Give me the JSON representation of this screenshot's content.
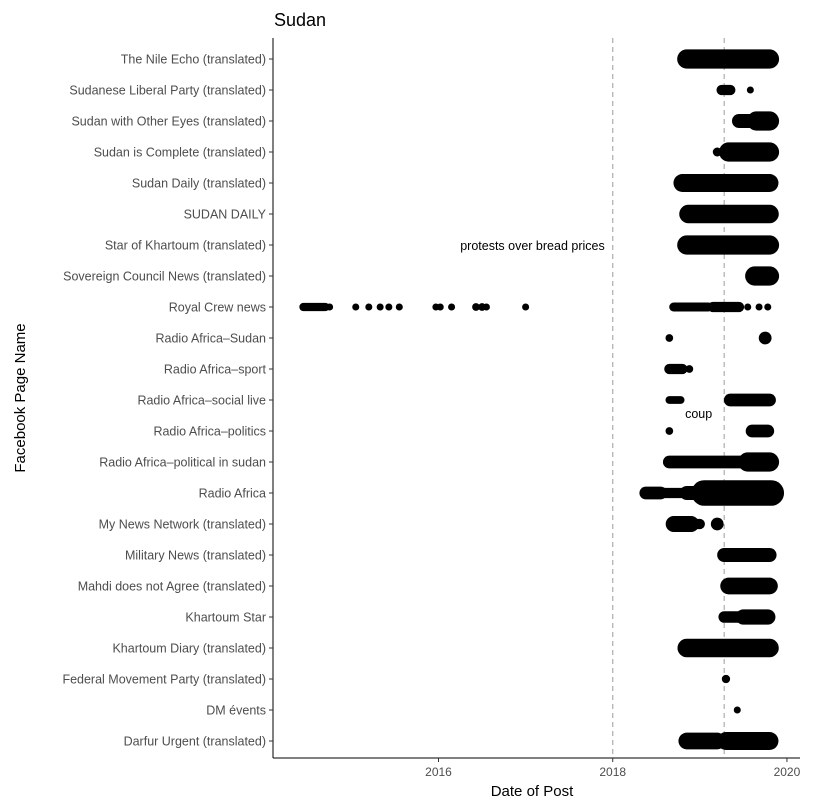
{
  "chart_data": {
    "type": "scatter",
    "title": "Sudan",
    "xlabel": "Date of Post",
    "ylabel": "Facebook Page Name",
    "xlim": [
      2014.1,
      2020.15
    ],
    "x_ticks": [
      2016,
      2018,
      2020
    ],
    "grid": false,
    "categories": [
      "The Nile Echo (translated)",
      "Sudanese Liberal Party (translated)",
      "Sudan with Other Eyes (translated)",
      "Sudan is Complete (translated)",
      "Sudan Daily (translated)",
      "SUDAN DAILY",
      "Star of Khartoum (translated)",
      "Sovereign Council News (translated)",
      "Royal Crew news",
      "Radio Africa–Sudan",
      "Radio Africa–sport",
      "Radio Africa–social live",
      "Radio Africa–politics",
      "Radio Africa–political in sudan",
      "Radio Africa",
      "My News Network (translated)",
      "Military News (translated)",
      "Mahdi does not Agree (translated)",
      "Khartoum Star",
      "Khartoum Diary (translated)",
      "Federal Movement Party (translated)",
      "DM évents",
      "Darfur Urgent (translated)"
    ],
    "vlines": [
      {
        "x": 2018.0,
        "label": "protests over bread prices",
        "label_y_category": "Star of Khartoum (translated)"
      },
      {
        "x": 2019.28,
        "label": "coup",
        "label_y_category": "Radio Africa–politics"
      }
    ],
    "series": [
      {
        "category": "The Nile Echo (translated)",
        "segments": [
          [
            2018.85,
            2019.8,
            3.0
          ]
        ]
      },
      {
        "category": "Sudanese Liberal Party (translated)",
        "segments": [
          [
            2019.25,
            2019.35,
            1.6
          ]
        ],
        "points": [
          [
            2019.58,
            1.1
          ]
        ]
      },
      {
        "category": "Sudan with Other Eyes (translated)",
        "segments": [
          [
            2019.45,
            2019.6,
            2.2
          ],
          [
            2019.65,
            2019.8,
            3.0
          ]
        ]
      },
      {
        "category": "Sudan is Complete (translated)",
        "segments": [
          [
            2019.33,
            2019.8,
            3.0
          ]
        ],
        "points": [
          [
            2019.2,
            1.4
          ]
        ]
      },
      {
        "category": "Sudan Daily (translated)",
        "segments": [
          [
            2018.8,
            2019.8,
            2.8
          ]
        ]
      },
      {
        "category": "SUDAN DAILY",
        "segments": [
          [
            2018.87,
            2019.8,
            2.9
          ]
        ]
      },
      {
        "category": "Star of Khartoum (translated)",
        "segments": [
          [
            2018.85,
            2019.8,
            3.0
          ]
        ]
      },
      {
        "category": "Sovereign Council News (translated)",
        "segments": [
          [
            2019.63,
            2019.8,
            3.0
          ]
        ]
      },
      {
        "category": "Royal Crew news",
        "segments": [
          [
            2014.45,
            2014.7,
            1.3
          ],
          [
            2018.7,
            2019.1,
            1.4
          ],
          [
            2019.15,
            2019.45,
            1.6
          ]
        ],
        "points": [
          [
            2014.75,
            1.1
          ],
          [
            2015.05,
            1.1
          ],
          [
            2015.2,
            1.1
          ],
          [
            2015.33,
            1.1
          ],
          [
            2015.43,
            1.1
          ],
          [
            2015.55,
            1.1
          ],
          [
            2015.97,
            1.1
          ],
          [
            2016.02,
            1.1
          ],
          [
            2016.15,
            1.1
          ],
          [
            2016.43,
            1.2
          ],
          [
            2016.5,
            1.2
          ],
          [
            2016.55,
            1.1
          ],
          [
            2017.0,
            1.1
          ],
          [
            2019.55,
            1.1
          ],
          [
            2019.68,
            1.1
          ],
          [
            2019.78,
            1.1
          ]
        ]
      },
      {
        "category": "Radio Africa–Sudan",
        "points": [
          [
            2018.65,
            1.2
          ],
          [
            2019.75,
            2.0
          ]
        ]
      },
      {
        "category": "Radio Africa–sport",
        "segments": [
          [
            2018.65,
            2018.8,
            1.6
          ]
        ],
        "points": [
          [
            2018.88,
            1.2
          ]
        ]
      },
      {
        "category": "Radio Africa–social live",
        "segments": [
          [
            2018.65,
            2018.78,
            1.2
          ],
          [
            2019.35,
            2019.8,
            2.0
          ]
        ]
      },
      {
        "category": "Radio Africa–politics",
        "segments": [
          [
            2019.6,
            2019.78,
            2.0
          ]
        ],
        "points": [
          [
            2018.65,
            1.2
          ]
        ]
      },
      {
        "category": "Radio Africa–political in sudan",
        "segments": [
          [
            2018.65,
            2019.5,
            2.0
          ],
          [
            2019.55,
            2019.8,
            3.0
          ]
        ]
      },
      {
        "category": "Radio Africa",
        "segments": [
          [
            2018.38,
            2018.55,
            2.0
          ],
          [
            2018.6,
            2018.8,
            1.6
          ],
          [
            2018.85,
            2019.0,
            2.2
          ],
          [
            2019.05,
            2019.82,
            4.0
          ]
        ]
      },
      {
        "category": "My News Network (translated)",
        "segments": [
          [
            2018.7,
            2018.9,
            2.5
          ],
          [
            2018.92,
            2019.0,
            1.6
          ]
        ],
        "points": [
          [
            2019.2,
            2.0
          ]
        ]
      },
      {
        "category": "Military News (translated)",
        "segments": [
          [
            2019.28,
            2019.8,
            2.2
          ]
        ]
      },
      {
        "category": "Mahdi does not Agree (translated)",
        "segments": [
          [
            2019.33,
            2019.8,
            2.6
          ]
        ]
      },
      {
        "category": "Khartoum Star",
        "segments": [
          [
            2019.28,
            2019.45,
            1.8
          ],
          [
            2019.5,
            2019.78,
            2.4
          ]
        ]
      },
      {
        "category": "Khartoum Diary (translated)",
        "segments": [
          [
            2018.85,
            2019.8,
            2.9
          ]
        ]
      },
      {
        "category": "Federal Movement Party (translated)",
        "points": [
          [
            2019.3,
            1.3
          ]
        ]
      },
      {
        "category": "DM évents",
        "points": [
          [
            2019.43,
            1.1
          ]
        ]
      },
      {
        "category": "Darfur Urgent (translated)",
        "segments": [
          [
            2018.85,
            2019.2,
            2.6
          ],
          [
            2019.3,
            2019.8,
            2.8
          ]
        ]
      }
    ]
  }
}
